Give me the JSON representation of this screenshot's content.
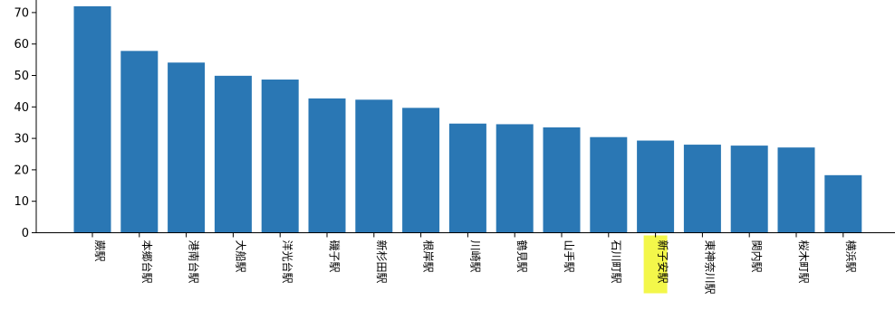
{
  "chart_data": {
    "type": "bar",
    "title": "",
    "xlabel": "",
    "ylabel": "",
    "ylim": [
      0,
      74
    ],
    "yticks": [
      0,
      10,
      20,
      30,
      40,
      50,
      60,
      70
    ],
    "bar_color": "#2a77b4",
    "highlight_color": "#f3f74a",
    "highlight_category": "新子安駅",
    "grid": false,
    "categories": [
      "蕨駅",
      "本郷台駅",
      "港南台駅",
      "大船駅",
      "洋光台駅",
      "磯子駅",
      "新杉田駅",
      "根岸駅",
      "川崎駅",
      "鶴見駅",
      "山手駅",
      "石川町駅",
      "新子安駅",
      "東神奈川駅",
      "関内駅",
      "桜木町駅",
      "横浜駅"
    ],
    "values": [
      72,
      57.8,
      54.1,
      49.9,
      48.7,
      42.7,
      42.3,
      39.7,
      34.7,
      34.5,
      33.5,
      30.4,
      29.3,
      28,
      27.7,
      27.1,
      18.3
    ]
  }
}
